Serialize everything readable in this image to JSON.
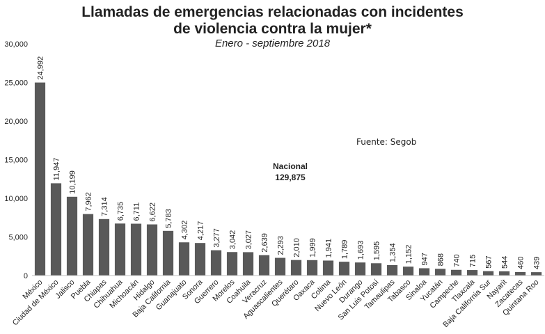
{
  "title": {
    "line1": "Llamadas de emergencias relacionadas con incidentes",
    "line2": "de violencia contra la mujer*",
    "subtitle": "Enero - septiembre 2018"
  },
  "source_note": "Fuente: Segob",
  "national": {
    "label": "Nacional",
    "value": "129,875"
  },
  "colors": {
    "bar": "#595959",
    "axis": "#bfbfbf",
    "text": "#222222"
  },
  "chart_data": {
    "type": "bar",
    "title": "Llamadas de emergencias relacionadas con incidentes de violencia contra la mujer*",
    "subtitle": "Enero - septiembre 2018",
    "xlabel": "",
    "ylabel": "",
    "ylim": [
      0,
      30000
    ],
    "yticks": [
      0,
      5000,
      10000,
      15000,
      20000,
      25000,
      30000
    ],
    "ytick_labels": [
      "0",
      "5,000",
      "10,000",
      "15,000",
      "20,000",
      "25,000",
      "30,000"
    ],
    "grid": false,
    "categories": [
      "México",
      "Ciudad de México",
      "Jalisco",
      "Puebla",
      "Chiapas",
      "Chihuahua",
      "Michoacán",
      "Hidalgo",
      "Baja California",
      "Guanajuato",
      "Sonora",
      "Guerrero",
      "Morelos",
      "Coahuila",
      "Veracruz",
      "Aguascalientes",
      "Querétaro",
      "Oaxaca",
      "Colima",
      "Nuevo León",
      "Durango",
      "San Luis Potosí",
      "Tamaulipas",
      "Tabasco",
      "Sinaloa",
      "Yucatán",
      "Campeche",
      "Tlaxcala",
      "Baja California Sur",
      "Nayarit",
      "Zacatecas",
      "Quintana Roo"
    ],
    "values": [
      24992,
      11947,
      10199,
      7962,
      7314,
      6735,
      6711,
      6622,
      5783,
      4302,
      4217,
      3277,
      3042,
      3027,
      2639,
      2293,
      2010,
      1999,
      1941,
      1789,
      1693,
      1595,
      1354,
      1152,
      947,
      868,
      740,
      715,
      567,
      544,
      460,
      439
    ],
    "data_labels": [
      "24,992",
      "11,947",
      "10,199",
      "7,962",
      "7,314",
      "6,735",
      "6,711",
      "6,622",
      "5,783",
      "4,302",
      "4,217",
      "3,277",
      "3,042",
      "3,027",
      "2,639",
      "2,293",
      "2,010",
      "1,999",
      "1,941",
      "1,789",
      "1,693",
      "1,595",
      "1,354",
      "1,152",
      "947",
      "868",
      "740",
      "715",
      "567",
      "544",
      "460",
      "439"
    ]
  }
}
